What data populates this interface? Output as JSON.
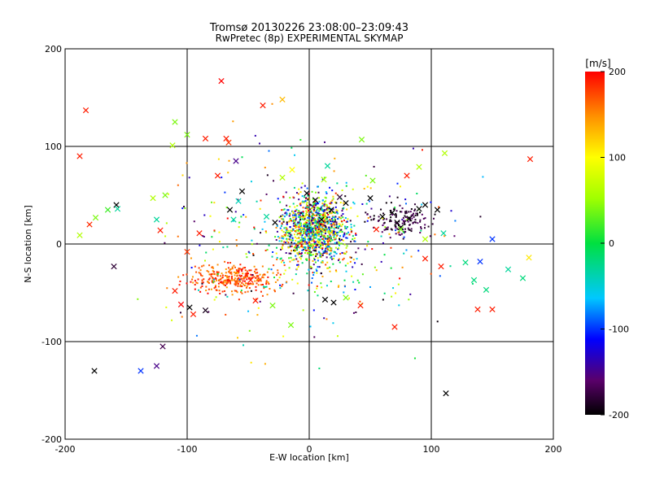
{
  "chart_data": {
    "type": "scatter",
    "title": "Tromsø 20130226 23:08:00–23:09:43",
    "subtitle": "RwPretec (8p) EXPERIMENTAL SKYMAP",
    "xlabel": "E-W location [km]",
    "ylabel": "N-S location [km]",
    "xlim": [
      -200,
      200
    ],
    "ylim": [
      -200,
      200
    ],
    "xticks": [
      -200,
      -100,
      0,
      100,
      200
    ],
    "yticks": [
      -200,
      -100,
      0,
      100,
      200
    ],
    "grid": true,
    "colorbar": {
      "label": "[m/s]",
      "min": -200,
      "max": 200,
      "ticks": [
        200,
        100,
        0,
        -100,
        -200
      ],
      "colormap": "rainbow-black-to-red"
    },
    "x_markers": [
      {
        "x": -183,
        "y": 137,
        "v": 190
      },
      {
        "x": -188,
        "y": 90,
        "v": 190
      },
      {
        "x": -180,
        "y": 20,
        "v": 185
      },
      {
        "x": -175,
        "y": 27,
        "v": 40
      },
      {
        "x": -165,
        "y": 35,
        "v": 20
      },
      {
        "x": -158,
        "y": 40,
        "v": -200
      },
      {
        "x": -157,
        "y": 36,
        "v": -30
      },
      {
        "x": -160,
        "y": -23,
        "v": -180
      },
      {
        "x": -188,
        "y": 9,
        "v": 60
      },
      {
        "x": -176,
        "y": -130,
        "v": -200
      },
      {
        "x": -138,
        "y": -130,
        "v": -100
      },
      {
        "x": -125,
        "y": -125,
        "v": -150
      },
      {
        "x": -120,
        "y": -105,
        "v": -170
      },
      {
        "x": -110,
        "y": 125,
        "v": 40
      },
      {
        "x": -112,
        "y": 101,
        "v": 60
      },
      {
        "x": -100,
        "y": 112,
        "v": 40
      },
      {
        "x": -85,
        "y": 108,
        "v": 190
      },
      {
        "x": -72,
        "y": 167,
        "v": 200
      },
      {
        "x": -68,
        "y": 108,
        "v": 190
      },
      {
        "x": -66,
        "y": 104,
        "v": 180
      },
      {
        "x": -38,
        "y": 142,
        "v": 190
      },
      {
        "x": -22,
        "y": 148,
        "v": 130
      },
      {
        "x": 43,
        "y": 107,
        "v": 40
      },
      {
        "x": -110,
        "y": -48,
        "v": 190
      },
      {
        "x": -105,
        "y": -62,
        "v": 200
      },
      {
        "x": -98,
        "y": -65,
        "v": -200
      },
      {
        "x": -85,
        "y": -68,
        "v": -190
      },
      {
        "x": -95,
        "y": -72,
        "v": 190
      },
      {
        "x": -118,
        "y": 50,
        "v": 40
      },
      {
        "x": -125,
        "y": 25,
        "v": -30
      },
      {
        "x": -128,
        "y": 47,
        "v": 60
      },
      {
        "x": -122,
        "y": 14,
        "v": 190
      },
      {
        "x": -90,
        "y": 11,
        "v": 190
      },
      {
        "x": -100,
        "y": -8,
        "v": 180
      },
      {
        "x": -55,
        "y": 54,
        "v": -200
      },
      {
        "x": -58,
        "y": 44,
        "v": -40
      },
      {
        "x": -62,
        "y": 25,
        "v": -30
      },
      {
        "x": -65,
        "y": 35,
        "v": -200
      },
      {
        "x": -75,
        "y": 70,
        "v": 190
      },
      {
        "x": -60,
        "y": 85,
        "v": -150
      },
      {
        "x": -28,
        "y": 22,
        "v": -200
      },
      {
        "x": -35,
        "y": 28,
        "v": -30
      },
      {
        "x": -14,
        "y": 76,
        "v": 100
      },
      {
        "x": -22,
        "y": 68,
        "v": 60
      },
      {
        "x": -2,
        "y": 52,
        "v": -200
      },
      {
        "x": 5,
        "y": 45,
        "v": -200
      },
      {
        "x": 18,
        "y": 35,
        "v": -200
      },
      {
        "x": 10,
        "y": 25,
        "v": -200
      },
      {
        "x": 25,
        "y": 48,
        "v": -180
      },
      {
        "x": 30,
        "y": 42,
        "v": -200
      },
      {
        "x": 15,
        "y": 80,
        "v": -30
      },
      {
        "x": 12,
        "y": 66,
        "v": 60
      },
      {
        "x": 52,
        "y": 65,
        "v": 40
      },
      {
        "x": 50,
        "y": 47,
        "v": -200
      },
      {
        "x": 55,
        "y": 15,
        "v": 190
      },
      {
        "x": 60,
        "y": 28,
        "v": -200
      },
      {
        "x": 68,
        "y": 32,
        "v": -200
      },
      {
        "x": 72,
        "y": 22,
        "v": -200
      },
      {
        "x": 75,
        "y": 17,
        "v": -200
      },
      {
        "x": 82,
        "y": 26,
        "v": -200
      },
      {
        "x": 90,
        "y": 36,
        "v": -200
      },
      {
        "x": 95,
        "y": 40,
        "v": -200
      },
      {
        "x": 105,
        "y": 35,
        "v": -200
      },
      {
        "x": 111,
        "y": 93,
        "v": 60
      },
      {
        "x": 90,
        "y": 79,
        "v": 60
      },
      {
        "x": 80,
        "y": 70,
        "v": 190
      },
      {
        "x": 75,
        "y": 15,
        "v": 40
      },
      {
        "x": 95,
        "y": 5,
        "v": 60
      },
      {
        "x": 110,
        "y": 11,
        "v": -30
      },
      {
        "x": 150,
        "y": 5,
        "v": -100
      },
      {
        "x": 181,
        "y": 87,
        "v": 190
      },
      {
        "x": 180,
        "y": -14,
        "v": 110
      },
      {
        "x": 175,
        "y": -35,
        "v": -20
      },
      {
        "x": 163,
        "y": -26,
        "v": -30
      },
      {
        "x": 145,
        "y": -47,
        "v": -20
      },
      {
        "x": 135,
        "y": -37,
        "v": -20
      },
      {
        "x": 140,
        "y": -18,
        "v": -100
      },
      {
        "x": 128,
        "y": -19,
        "v": -20
      },
      {
        "x": 108,
        "y": -23,
        "v": 190
      },
      {
        "x": 95,
        "y": -15,
        "v": 190
      },
      {
        "x": 138,
        "y": -67,
        "v": 190
      },
      {
        "x": 150,
        "y": -67,
        "v": 190
      },
      {
        "x": 112,
        "y": -153,
        "v": -200
      },
      {
        "x": 70,
        "y": -85,
        "v": 190
      },
      {
        "x": 42,
        "y": -63,
        "v": 190
      },
      {
        "x": 30,
        "y": -55,
        "v": 40
      },
      {
        "x": 20,
        "y": -60,
        "v": -200
      },
      {
        "x": 13,
        "y": -57,
        "v": -200
      },
      {
        "x": -15,
        "y": -83,
        "v": 40
      },
      {
        "x": -30,
        "y": -63,
        "v": 40
      },
      {
        "x": -44,
        "y": -58,
        "v": 190
      },
      {
        "x": -48,
        "y": -37,
        "v": 190
      }
    ]
  }
}
